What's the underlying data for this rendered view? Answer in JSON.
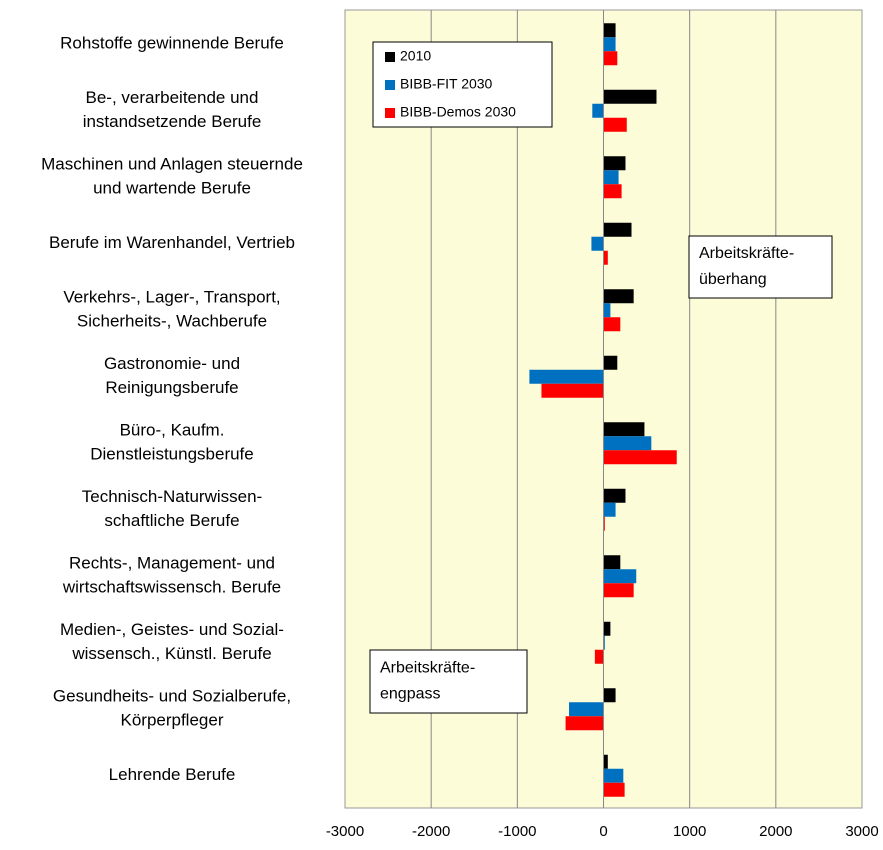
{
  "chart_data": {
    "type": "bar",
    "orientation": "horizontal",
    "categories": [
      "Rohstoffe gewinnende Berufe",
      "Be-, verarbeitende und\ninstandsetzende Berufe",
      "Maschinen und Anlagen steuernde\nund wartende Berufe",
      "Berufe im Warenhandel, Vertrieb",
      "Verkehrs-, Lager-, Transport,\nSicherheits-, Wachberufe",
      "Gastronomie- und\nReinigungsberufe",
      "Büro-, Kaufm.\nDienstleistungsberufe",
      "Technisch-Naturwissen-\nschaftliche Berufe",
      "Rechts-, Management- und\nwirtschaftswissensch. Berufe",
      "Medien-, Geistes- und Sozial-\nwissensch., Künstl. Berufe",
      "Gesundheits- und Sozialberufe,\nKörperpfleger",
      "Lehrende Berufe"
    ],
    "series": [
      {
        "name": "2010",
        "color": "#000000",
        "values": [
          140,
          615,
          255,
          325,
          350,
          160,
          475,
          255,
          195,
          80,
          140,
          50
        ]
      },
      {
        "name": "BIBB-FIT 2030",
        "color": "#0070c0",
        "values": [
          140,
          -130,
          175,
          -140,
          80,
          -860,
          555,
          140,
          380,
          15,
          -400,
          230
        ]
      },
      {
        "name": "BIBB-Demos 2030",
        "color": "#ff0000",
        "values": [
          160,
          270,
          210,
          50,
          195,
          -720,
          850,
          15,
          350,
          -100,
          -440,
          245
        ]
      }
    ],
    "xlim": [
      -3000,
      3000
    ],
    "xticks": [
      -3000,
      -2000,
      -1000,
      0,
      1000,
      2000,
      3000
    ],
    "grid": true,
    "annotations": [
      "Arbeitskräfte-\nüberhang",
      "Arbeitskräfte-\nengpass"
    ]
  }
}
